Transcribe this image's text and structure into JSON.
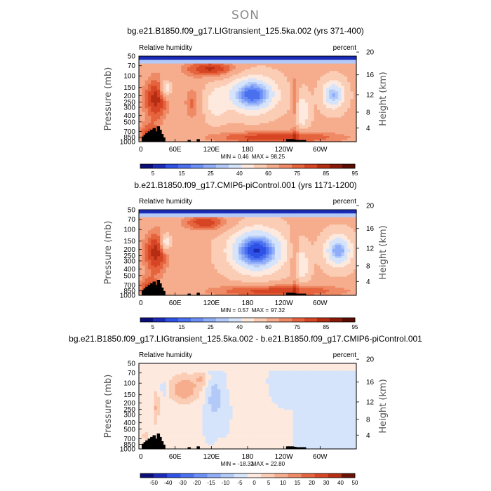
{
  "figure": {
    "season": "SON"
  },
  "chart_data": [
    {
      "type": "heatmap",
      "title": "bg.e21.B1850.f09_g17.LIGtransient_125.5ka.002 (yrs 371-400)",
      "variable_label": "Relative humidity",
      "units_label": "percent",
      "xlabel": "",
      "ylabel": "Pressure (mb)",
      "y2label": "Height (km)",
      "x_ticks": [
        "0",
        "60E",
        "120E",
        "180",
        "120W",
        "60W"
      ],
      "y_ticks": [
        "50",
        "70",
        "100",
        "150",
        "200",
        "250",
        "300",
        "400",
        "500",
        "700",
        "850",
        "1000"
      ],
      "y2_ticks": [
        "20",
        "16",
        "12",
        "8",
        "4"
      ],
      "x_range_deg": [
        0,
        360
      ],
      "y_range_mb": [
        1000,
        50
      ],
      "stats": {
        "min_label": "MIN =",
        "min": "0.46",
        "max_label": "MAX =",
        "max": "98.25"
      },
      "colorbar": {
        "labels": [
          "5",
          "15",
          "25",
          "40",
          "60",
          "75",
          "85",
          "95"
        ],
        "levels": [
          0,
          5,
          10,
          15,
          20,
          25,
          30,
          40,
          50,
          60,
          70,
          75,
          80,
          85,
          90,
          95
        ],
        "colors": [
          "#0b0d7a",
          "#1b2bb8",
          "#2f52e6",
          "#4a70f0",
          "#6b8ff5",
          "#8fadf8",
          "#b3caf9",
          "#d6e4fb",
          "#fde9de",
          "#fbcdb5",
          "#f6ad8d",
          "#ef8a66",
          "#e5643e",
          "#d64524",
          "#b52d12",
          "#8a1a08",
          "#5a0c02"
        ]
      },
      "field": "lig"
    },
    {
      "type": "heatmap",
      "title": "b.e21.B1850.f09_g17.CMIP6-piControl.001 (yrs 1171-1200)",
      "variable_label": "Relative humidity",
      "units_label": "percent",
      "xlabel": "",
      "ylabel": "Pressure (mb)",
      "y2label": "Height (km)",
      "x_ticks": [
        "0",
        "60E",
        "120E",
        "180",
        "120W",
        "60W"
      ],
      "y_ticks": [
        "50",
        "70",
        "100",
        "150",
        "200",
        "250",
        "300",
        "400",
        "500",
        "700",
        "850",
        "1000"
      ],
      "y2_ticks": [
        "20",
        "16",
        "12",
        "8",
        "4"
      ],
      "x_range_deg": [
        0,
        360
      ],
      "y_range_mb": [
        1000,
        50
      ],
      "stats": {
        "min_label": "MIN =",
        "min": "0.57",
        "max_label": "MAX =",
        "max": "97.32"
      },
      "colorbar": {
        "labels": [
          "5",
          "15",
          "25",
          "40",
          "60",
          "75",
          "85",
          "95"
        ],
        "levels": [
          0,
          5,
          10,
          15,
          20,
          25,
          30,
          40,
          50,
          60,
          70,
          75,
          80,
          85,
          90,
          95
        ],
        "colors": [
          "#0b0d7a",
          "#1b2bb8",
          "#2f52e6",
          "#4a70f0",
          "#6b8ff5",
          "#8fadf8",
          "#b3caf9",
          "#d6e4fb",
          "#fde9de",
          "#fbcdb5",
          "#f6ad8d",
          "#ef8a66",
          "#e5643e",
          "#d64524",
          "#b52d12",
          "#8a1a08",
          "#5a0c02"
        ]
      },
      "field": "ctl"
    },
    {
      "type": "heatmap",
      "title": "bg.e21.B1850.f09_g17.LIGtransient_125.5ka.002 - b.e21.B1850.f09_g17.CMIP6-piControl.001",
      "variable_label": "Relative humidity",
      "units_label": "percent",
      "xlabel": "",
      "ylabel": "Pressure (mb)",
      "y2label": "Height (km)",
      "x_ticks": [
        "0",
        "60E",
        "120E",
        "180",
        "120W",
        "60W"
      ],
      "y_ticks": [
        "50",
        "70",
        "100",
        "150",
        "200",
        "250",
        "300",
        "400",
        "500",
        "700",
        "850",
        "1000"
      ],
      "y2_ticks": [
        "20",
        "16",
        "12",
        "8",
        "4"
      ],
      "x_range_deg": [
        0,
        360
      ],
      "y_range_mb": [
        1000,
        50
      ],
      "stats": {
        "min_label": "MIN =",
        "min": "-18.32",
        "max_label": "MAX =",
        "max": "22.80"
      },
      "colorbar": {
        "labels": [
          "-50",
          "-40",
          "-30",
          "-20",
          "-15",
          "-10",
          "-5",
          "0",
          "5",
          "10",
          "15",
          "20",
          "30",
          "40",
          "50"
        ],
        "levels": [
          -50,
          -40,
          -30,
          -20,
          -15,
          -10,
          -5,
          0,
          5,
          10,
          15,
          20,
          30,
          40,
          50
        ],
        "colors": [
          "#0b0d7a",
          "#1b2bb8",
          "#2f52e6",
          "#4a70f0",
          "#6b8ff5",
          "#8fadf8",
          "#b3caf9",
          "#d6e4fb",
          "#fde9de",
          "#fbcdb5",
          "#f6ad8d",
          "#ef8a66",
          "#e5643e",
          "#d64524",
          "#b52d12",
          "#6a1205"
        ]
      },
      "field": "diff"
    }
  ]
}
